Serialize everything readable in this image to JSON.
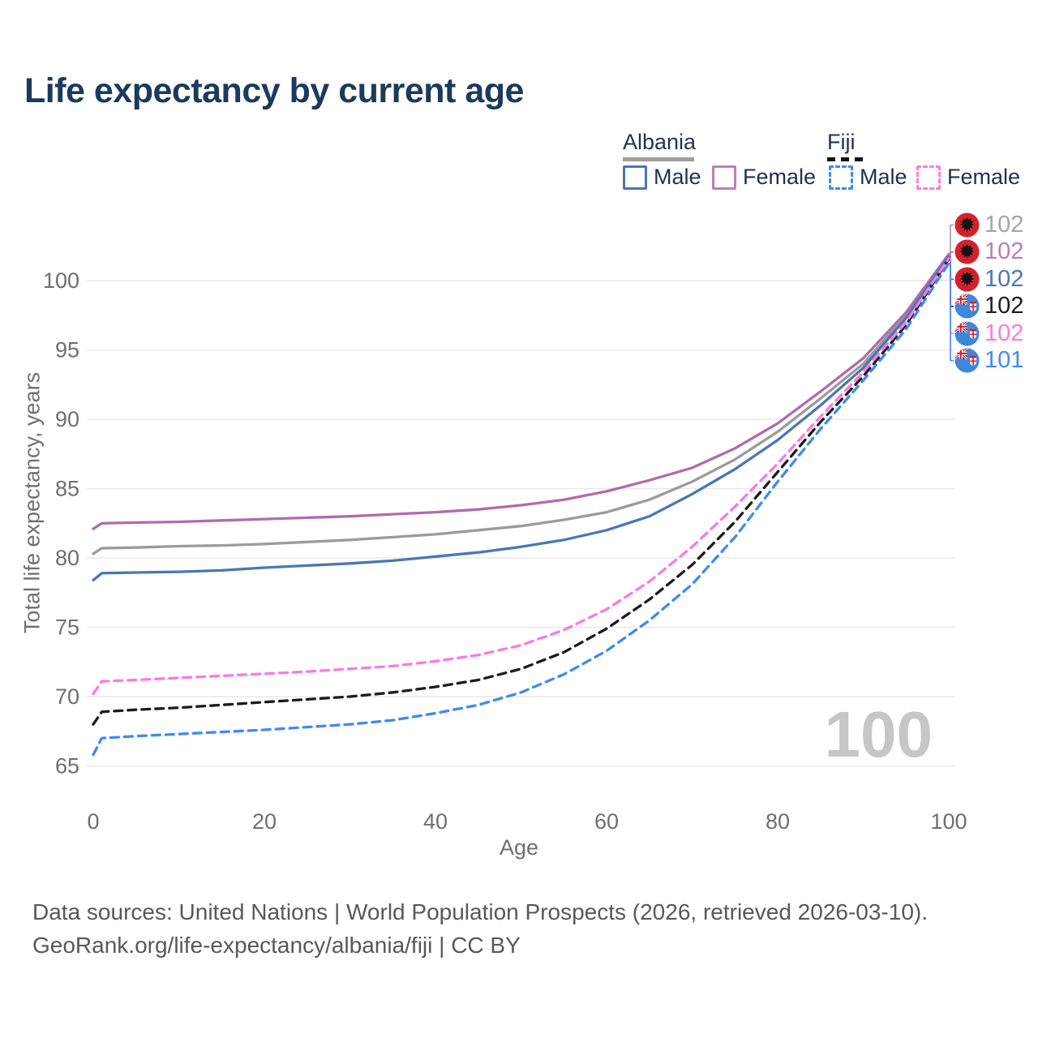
{
  "title": "Life expectancy by current age",
  "legend": {
    "groups": [
      {
        "country": "Albania",
        "line_style": "solid",
        "underline_color": "#9e9e9e",
        "items": [
          {
            "label": "Male",
            "color": "#4a76b6"
          },
          {
            "label": "Female",
            "color": "#bd80b8"
          }
        ]
      },
      {
        "country": "Fiji",
        "line_style": "dashed",
        "underline_color": "#141414",
        "items": [
          {
            "label": "Male",
            "color": "#3f8af2"
          },
          {
            "label": "Female",
            "color": "#fc7ce4"
          }
        ]
      }
    ]
  },
  "chart_data": {
    "type": "line",
    "title": "Life expectancy by current age",
    "xlabel": "Age",
    "ylabel": "Total life expectancy, years",
    "x_ticks": [
      0,
      20,
      40,
      60,
      80,
      100
    ],
    "y_ticks": [
      65,
      70,
      75,
      80,
      85,
      90,
      95,
      100
    ],
    "xlim": [
      0,
      100
    ],
    "ylim": [
      63.5,
      103
    ],
    "grid": "horizontal-only",
    "grid_color": "#e8e8e8",
    "axis_text_color": "#6f6f6f",
    "watermark": "100",
    "ages": [
      0,
      1,
      5,
      10,
      15,
      20,
      25,
      30,
      35,
      40,
      45,
      50,
      55,
      60,
      65,
      70,
      75,
      80,
      85,
      90,
      95,
      100
    ],
    "series": [
      {
        "id": "albania-total",
        "country": "Albania",
        "sex": "Total",
        "dash": "solid",
        "color": "#9b9b9b",
        "flag": "albania",
        "end_label": "102",
        "end_label_color": "#a6a6a6",
        "values": [
          80.3,
          80.7,
          80.75,
          80.85,
          80.9,
          81.0,
          81.15,
          81.3,
          81.5,
          81.7,
          82.0,
          82.3,
          82.75,
          83.3,
          84.2,
          85.5,
          87.1,
          89.1,
          91.5,
          94.0,
          97.5,
          101.85
        ]
      },
      {
        "id": "albania-female",
        "country": "Albania",
        "sex": "Female",
        "dash": "solid",
        "color": "#b16bad",
        "flag": "albania",
        "end_label": "102",
        "end_label_color": "#b77fb3",
        "values": [
          82.1,
          82.5,
          82.55,
          82.6,
          82.7,
          82.8,
          82.9,
          83.0,
          83.15,
          83.3,
          83.5,
          83.8,
          84.2,
          84.8,
          85.6,
          86.5,
          87.9,
          89.7,
          92.0,
          94.4,
          97.7,
          101.9
        ]
      },
      {
        "id": "albania-male",
        "country": "Albania",
        "sex": "Male",
        "dash": "solid",
        "color": "#4a76b6",
        "flag": "albania",
        "end_label": "102",
        "end_label_color": "#4a76b6",
        "values": [
          78.4,
          78.9,
          78.95,
          79.0,
          79.1,
          79.3,
          79.45,
          79.6,
          79.8,
          80.1,
          80.4,
          80.8,
          81.3,
          82.0,
          83.0,
          84.6,
          86.4,
          88.5,
          91.0,
          93.7,
          97.3,
          101.75
        ]
      },
      {
        "id": "fiji-total",
        "country": "Fiji",
        "sex": "Total",
        "dash": "dashed",
        "color": "#1c1c1c",
        "flag": "fiji",
        "end_label": "102",
        "end_label_color": "#1c1c1c",
        "values": [
          68.0,
          68.9,
          69.05,
          69.2,
          69.4,
          69.6,
          69.8,
          70.0,
          70.3,
          70.7,
          71.2,
          72.0,
          73.2,
          74.9,
          77.0,
          79.5,
          82.6,
          86.2,
          89.8,
          93.1,
          96.8,
          101.55
        ]
      },
      {
        "id": "fiji-female",
        "country": "Fiji",
        "sex": "Female",
        "dash": "dashed",
        "color": "#fb7ae1",
        "flag": "fiji",
        "end_label": "102",
        "end_label_color": "#fb7ae1",
        "values": [
          70.2,
          71.1,
          71.2,
          71.35,
          71.5,
          71.65,
          71.8,
          72.0,
          72.2,
          72.55,
          73.0,
          73.7,
          74.8,
          76.3,
          78.3,
          80.8,
          83.7,
          86.8,
          90.2,
          93.4,
          97.0,
          101.6
        ]
      },
      {
        "id": "fiji-male",
        "country": "Fiji",
        "sex": "Male",
        "dash": "dashed",
        "color": "#3f8af2",
        "flag": "fiji",
        "end_label": "101",
        "end_label_color": "#3f8af2",
        "values": [
          65.8,
          67.0,
          67.15,
          67.3,
          67.45,
          67.6,
          67.8,
          68.0,
          68.3,
          68.8,
          69.4,
          70.3,
          71.6,
          73.3,
          75.5,
          78.1,
          81.5,
          85.5,
          89.3,
          92.8,
          96.5,
          101.25
        ]
      }
    ]
  },
  "footer": {
    "line1": "Data sources: United Nations | World Population Prospects (2026, retrieved 2026-03-10).",
    "line2": "GeoRank.org/life-expectancy/albania/fiji | CC BY"
  }
}
